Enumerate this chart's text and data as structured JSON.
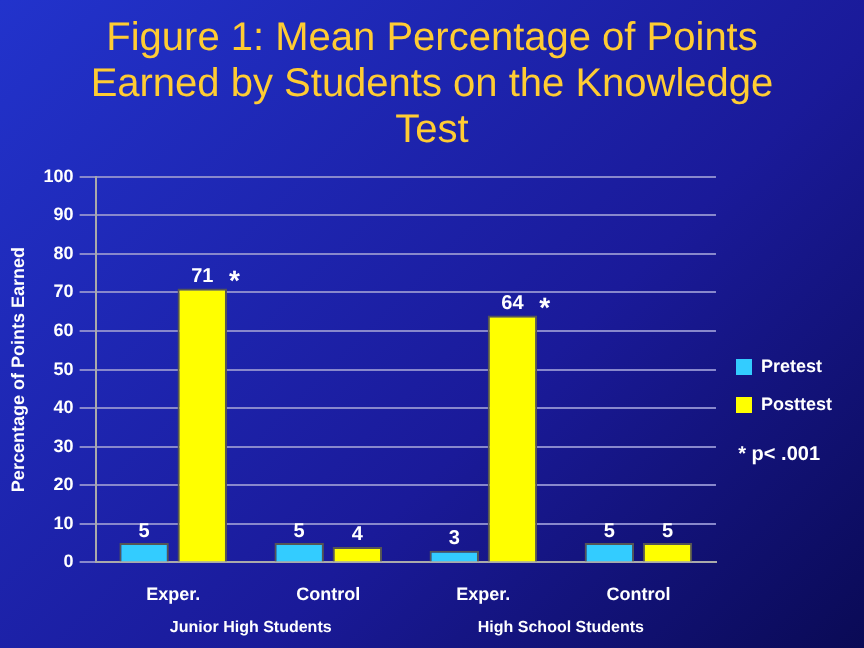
{
  "chart_data": {
    "type": "bar",
    "title": "Figure 1: Mean Percentage of Points Earned by Students on the  Knowledge Test",
    "ylabel": "Percentage of Points Earned",
    "categories": [
      "Exper.",
      "Control",
      "Exper.",
      "Control"
    ],
    "series": [
      {
        "name": "Pretest",
        "color": "#33ccff",
        "values": [
          5,
          5,
          3,
          5
        ]
      },
      {
        "name": "Posttest",
        "color": "#ffff00",
        "values": [
          71,
          4,
          64,
          5
        ]
      }
    ],
    "ylim": [
      0,
      100
    ],
    "yticks": [
      0,
      10,
      20,
      30,
      40,
      50,
      60,
      70,
      80,
      90,
      100
    ],
    "grid": "y",
    "legend": "right",
    "data_labels": true,
    "annotations": [
      "*",
      "*",
      "Junior High Students",
      "High School Students",
      "* p< .001"
    ]
  }
}
